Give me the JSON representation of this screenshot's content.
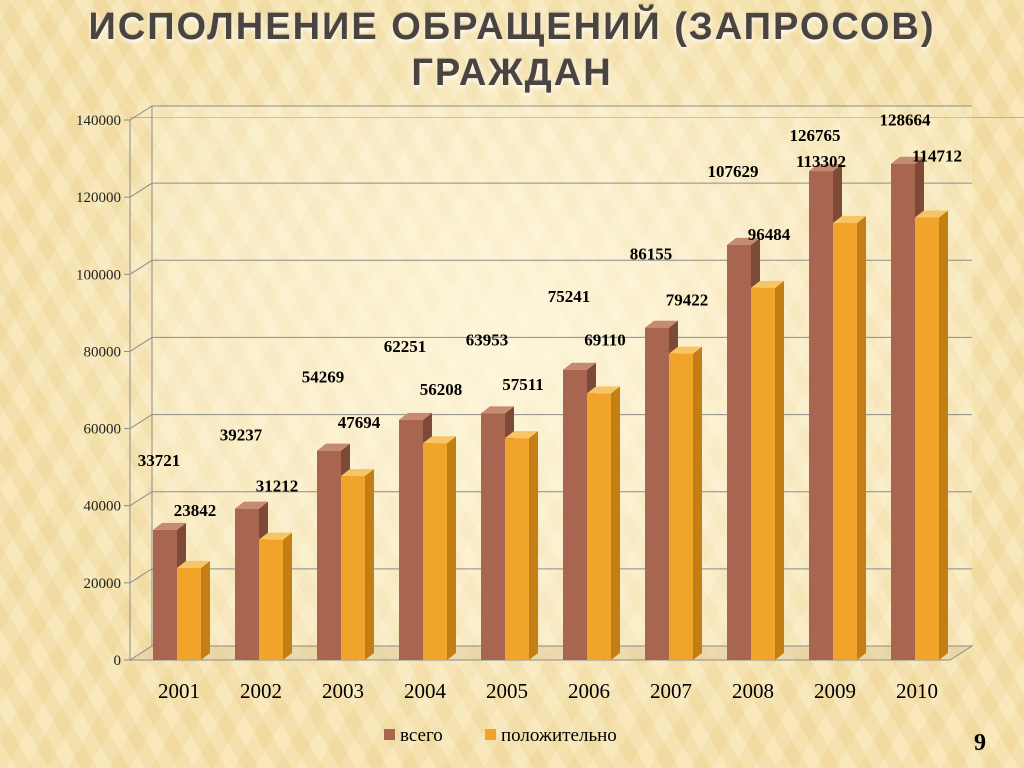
{
  "slide": {
    "title_line1": "ИСПОЛНЕНИЕ ОБРАЩЕНИЙ (ЗАПРОСОВ)",
    "title_line2": "ГРАЖДАН",
    "page_number": "9"
  },
  "colors": {
    "series1_front": "#a86650",
    "series1_side": "#7e4a38",
    "series1_top": "#c58a72",
    "series2_front": "#f0a52a",
    "series2_side": "#c47f14",
    "series2_top": "#f8c566",
    "accent_line": "#e9a94a"
  },
  "chart_data": {
    "type": "bar",
    "categories": [
      "2001",
      "2002",
      "2003",
      "2004",
      "2005",
      "2006",
      "2007",
      "2008",
      "2009",
      "2010"
    ],
    "series": [
      {
        "name": "всего",
        "values": [
          33721,
          39237,
          54269,
          62251,
          63953,
          75241,
          86155,
          107629,
          126765,
          128664
        ]
      },
      {
        "name": "положительно",
        "values": [
          23842,
          31212,
          47694,
          56208,
          57511,
          69110,
          79422,
          96484,
          113302,
          114712
        ]
      }
    ],
    "ylim": [
      0,
      140000
    ],
    "yticks": [
      0,
      20000,
      40000,
      60000,
      80000,
      100000,
      120000,
      140000
    ],
    "ytick_labels": [
      "0",
      "20000",
      "40000",
      "60000",
      "80000",
      "100000",
      "120000",
      "140000"
    ],
    "grid": true,
    "legend": "bottom",
    "three_d": true
  }
}
